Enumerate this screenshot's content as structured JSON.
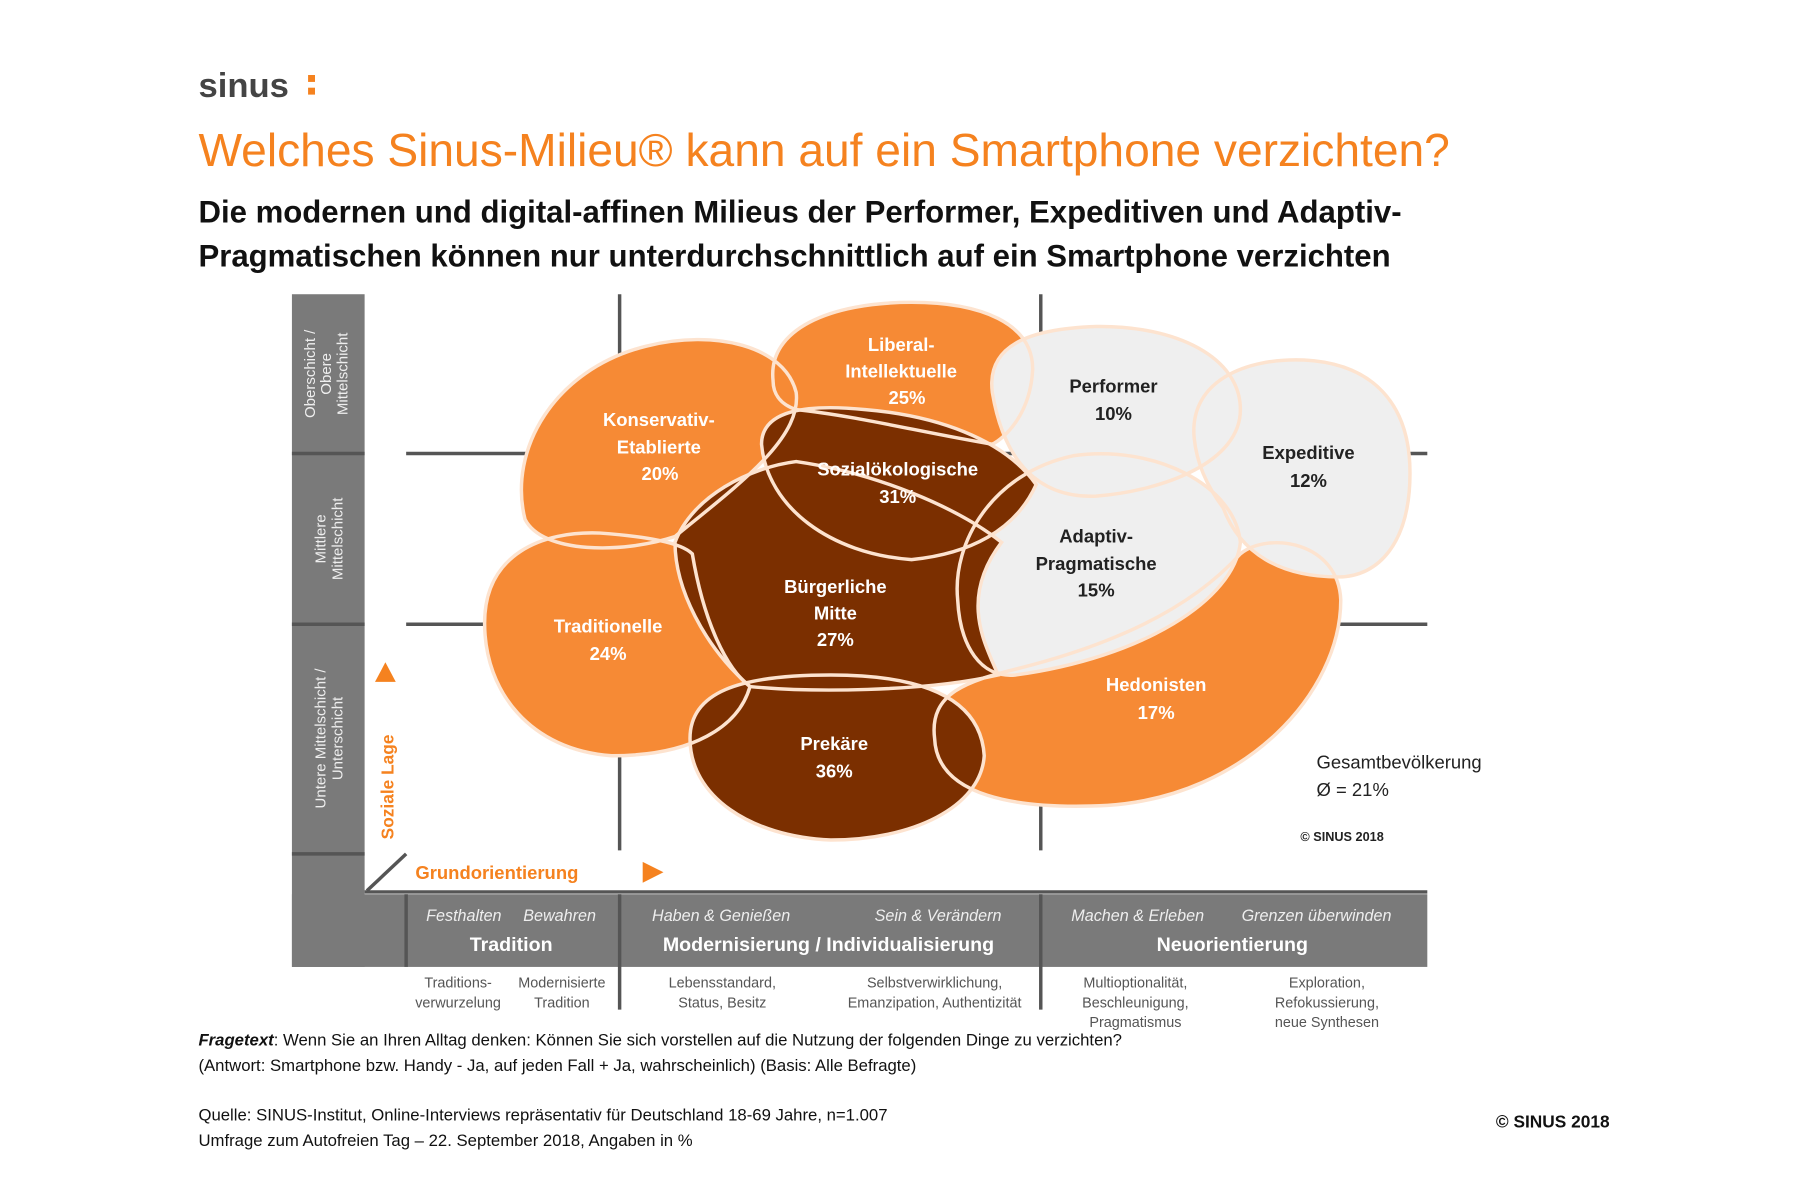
{
  "logo": "sinus",
  "title": "Welches Sinus-Milieu® kann auf ein Smartphone verzichten?",
  "subtitle": [
    "Die modernen und digital-affinen Milieus der Performer, Expeditiven und Adaptiv-",
    "Pragmatischen können nur unterdurchschnittlich auf ein Smartphone verzichten"
  ],
  "colors": {
    "accent": "#f5821f",
    "orange_blob": "#f68a35",
    "dark_blob": "#7b2f00",
    "light_blob": "#efefef",
    "bar": "#7a7a7a"
  },
  "milieus": [
    {
      "name": [
        "Konservativ-",
        "Etablierte"
      ],
      "value": "20%"
    },
    {
      "name": [
        "Liberal-",
        "Intellektuelle"
      ],
      "value": "25%"
    },
    {
      "name": [
        "Performer"
      ],
      "value": "10%"
    },
    {
      "name": [
        "Expeditive"
      ],
      "value": "12%"
    },
    {
      "name": [
        "Sozialökologische"
      ],
      "value": "31%"
    },
    {
      "name": [
        "Adaptiv-",
        "Pragmatische"
      ],
      "value": "15%"
    },
    {
      "name": [
        "Bürgerliche",
        "Mitte"
      ],
      "value": "27%"
    },
    {
      "name": [
        "Traditionelle"
      ],
      "value": "24%"
    },
    {
      "name": [
        "Hedonisten"
      ],
      "value": "17%"
    },
    {
      "name": [
        "Prekäre"
      ],
      "value": "36%"
    }
  ],
  "average": {
    "label": "Gesamtbevölkerung",
    "value": "Ø = 21%"
  },
  "chart_copyright": "© SINUS 2018",
  "y_axis": {
    "label": "Soziale Lage",
    "rows": [
      [
        "Oberschicht /",
        "Obere",
        "Mittelschicht"
      ],
      [
        "Mittlere",
        "Mittelschicht"
      ],
      [
        "Untere Mittelschicht /",
        "Unterschicht"
      ]
    ]
  },
  "x_axis": {
    "label": "Grundorientierung",
    "subheads": [
      "Festhalten",
      "Bewahren",
      "Haben & Genießen",
      "Sein & Verändern",
      "Machen & Erleben",
      "Grenzen überwinden"
    ],
    "groups": [
      "Tradition",
      "Modernisierung / Individualisierung",
      "Neuorientierung"
    ],
    "descriptions": [
      [
        "Traditions-",
        "verwurzelung"
      ],
      [
        "Modernisierte",
        "Tradition"
      ],
      [
        "Lebensstandard,",
        "Status, Besitz"
      ],
      [
        "Selbstverwirklichung,",
        "Emanzipation, Authentizität"
      ],
      [
        "Multioptionalität,",
        "Beschleunigung,",
        "Pragmatismus"
      ],
      [
        "Exploration,",
        "Refokussierung,",
        "neue Synthesen"
      ]
    ]
  },
  "footer": {
    "question_label": "Fragetext",
    "question": ": Wenn Sie an Ihren Alltag denken: Können Sie sich vorstellen auf die Nutzung der folgenden Dinge zu verzichten?",
    "answer": "(Antwort: Smartphone bzw. Handy - Ja, auf jeden Fall + Ja, wahrscheinlich) (Basis: Alle Befragte)",
    "source": [
      "Quelle: SINUS-Institut, Online-Interviews repräsentativ für Deutschland 18-69 Jahre, n=1.007",
      "Umfrage zum Autofreien Tag – 22. September 2018, Angaben in %"
    ],
    "copyright": "© SINUS 2018"
  }
}
